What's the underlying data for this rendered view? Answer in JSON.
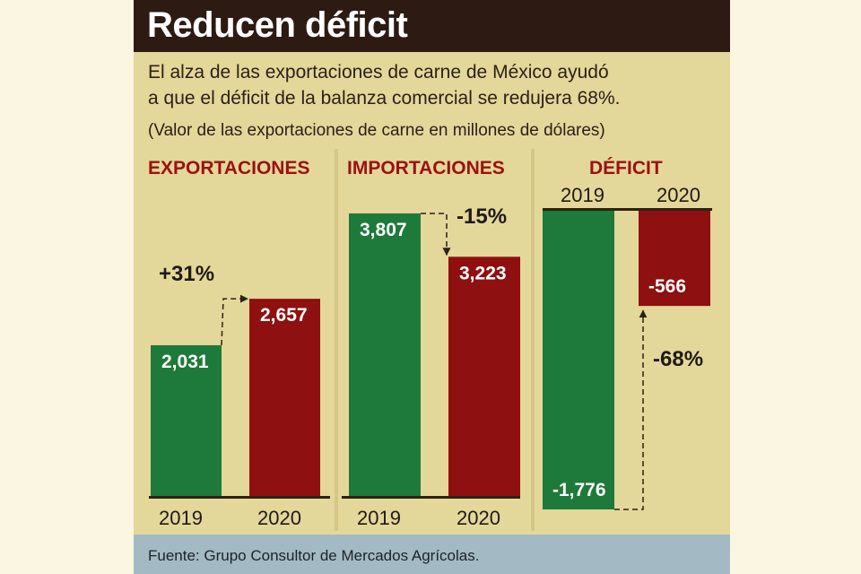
{
  "title": "Reducen déficit",
  "subtitle_line1": "El alza de las exportaciones de carne de México ayudó",
  "subtitle_line2": "a que el déficit de la balanza comercial se redujera 68%.",
  "note": "(Valor de las exportaciones de carne en millones de dólares)",
  "source": "Fuente: Grupo Consultor de Mercados Agrícolas.",
  "colors": {
    "year_2019": "#1e7a3a",
    "year_2020": "#8e1010",
    "panel_titles": "#9b1111",
    "background": "#e4d79a",
    "title_bar": "#2c1a13",
    "source_bar": "#a3bac5"
  },
  "chart_data": [
    {
      "type": "bar",
      "title": "EXPORTACIONES",
      "categories": [
        "2019",
        "2020"
      ],
      "values": [
        2031,
        2657
      ],
      "value_labels": [
        "2,031",
        "2,657"
      ],
      "change_label": "+31%",
      "ylim": [
        0,
        4000
      ]
    },
    {
      "type": "bar",
      "title": "IMPORTACIONES",
      "categories": [
        "2019",
        "2020"
      ],
      "values": [
        3807,
        3223
      ],
      "value_labels": [
        "3,807",
        "3,223"
      ],
      "change_label": "-15%",
      "ylim": [
        0,
        4000
      ]
    },
    {
      "type": "bar",
      "title": "DÉFICIT",
      "categories": [
        "2019",
        "2020"
      ],
      "values": [
        -1776,
        -566
      ],
      "value_labels": [
        "-1,776",
        "-566"
      ],
      "change_label": "-68%",
      "ylim": [
        -1776,
        0
      ]
    }
  ]
}
